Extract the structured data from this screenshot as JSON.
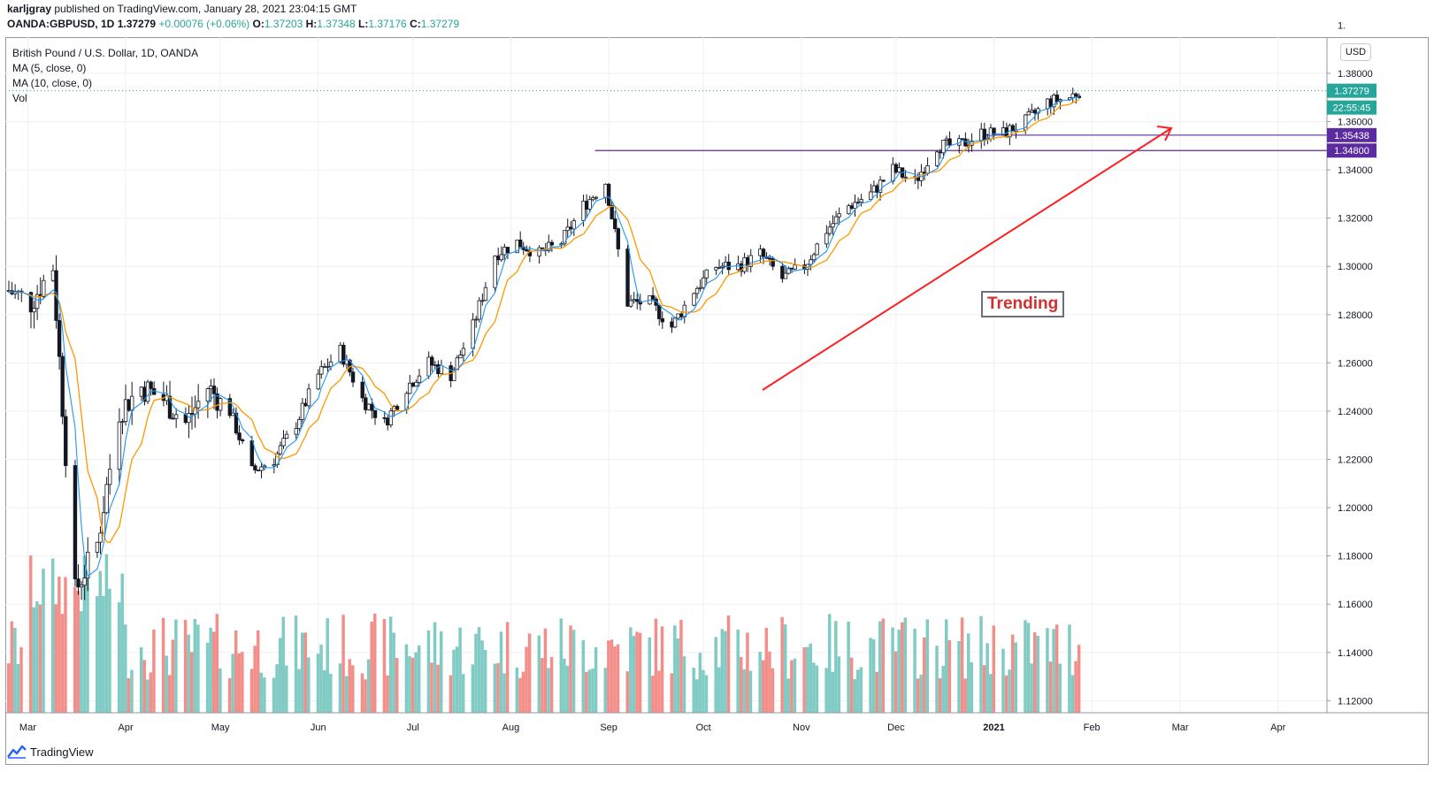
{
  "header": {
    "publisher": "karljgray",
    "published_text": " published on TradingView.com, January 28, 2021 23:04:15 GMT",
    "symbol": "OANDA:GBPUSD, 1D",
    "last": "1.37279",
    "change": "+0.00076 (+0.06%)",
    "o_label": "O:",
    "o": "1.37203",
    "h_label": "H:",
    "h": "1.37348",
    "l_label": "L:",
    "l": "1.37176",
    "c_label": "C:",
    "c": "1.37279"
  },
  "legend": {
    "title": "British Pound / U.S. Dollar, 1D, OANDA",
    "ma5": "MA (5, close, 0)",
    "ma10": "MA (10, close, 0)",
    "vol": "Vol"
  },
  "currency_button": "USD",
  "annotation": {
    "text": "Trending",
    "color": "#d32f2f"
  },
  "footer": {
    "brand": "TradingView"
  },
  "price_tags": {
    "last": "1.37279",
    "countdown": "22:55:45",
    "level1": "1.35438",
    "level2": "1.34800"
  },
  "colors": {
    "up": "#26a69a",
    "down": "#ef5350",
    "candle": "#131722",
    "ma5": "#2196f3",
    "ma10": "#ff9800",
    "vol_up": "#80cbc4",
    "vol_down": "#f28f8a",
    "level_line": "#5b2c9f",
    "trend_arrow": "#ff1f1f"
  },
  "chart_data": {
    "type": "candlestick",
    "symbol": "OANDA:GBPUSD",
    "interval": "1D",
    "ylim": [
      1.115,
      1.395
    ],
    "y_ticks": [
      "1.38000",
      "1.36000",
      "1.34000",
      "1.32000",
      "1.30000",
      "1.28000",
      "1.26000",
      "1.24000",
      "1.22000",
      "1.20000",
      "1.18000",
      "1.16000",
      "1.14000",
      "1.12000"
    ],
    "x_ticks": [
      "Mar",
      "Apr",
      "May",
      "Jun",
      "Jul",
      "Aug",
      "Sep",
      "Oct",
      "Nov",
      "Dec",
      "2021",
      "Feb",
      "Mar",
      "Apr"
    ],
    "close_series": {
      "dates": [
        "2020-02-24",
        "2020-03-02",
        "2020-03-09",
        "2020-03-16",
        "2020-03-23",
        "2020-03-30",
        "2020-04-06",
        "2020-04-13",
        "2020-04-20",
        "2020-04-27",
        "2020-05-04",
        "2020-05-11",
        "2020-05-18",
        "2020-05-25",
        "2020-06-01",
        "2020-06-08",
        "2020-06-15",
        "2020-06-22",
        "2020-06-29",
        "2020-07-06",
        "2020-07-13",
        "2020-07-20",
        "2020-07-27",
        "2020-08-03",
        "2020-08-10",
        "2020-08-17",
        "2020-08-24",
        "2020-08-31",
        "2020-09-07",
        "2020-09-14",
        "2020-09-21",
        "2020-09-28",
        "2020-10-05",
        "2020-10-12",
        "2020-10-19",
        "2020-10-26",
        "2020-11-02",
        "2020-11-09",
        "2020-11-16",
        "2020-11-23",
        "2020-11-30",
        "2020-12-07",
        "2020-12-14",
        "2020-12-21",
        "2020-12-28",
        "2021-01-04",
        "2021-01-11",
        "2021-01-18",
        "2021-01-25",
        "2021-01-28"
      ],
      "close": [
        1.29,
        1.285,
        1.3,
        1.165,
        1.185,
        1.24,
        1.25,
        1.245,
        1.235,
        1.25,
        1.24,
        1.215,
        1.22,
        1.235,
        1.255,
        1.265,
        1.245,
        1.235,
        1.25,
        1.26,
        1.255,
        1.275,
        1.305,
        1.31,
        1.305,
        1.31,
        1.325,
        1.335,
        1.285,
        1.285,
        1.275,
        1.29,
        1.3,
        1.3,
        1.305,
        1.295,
        1.3,
        1.315,
        1.325,
        1.33,
        1.34,
        1.335,
        1.35,
        1.35,
        1.355,
        1.355,
        1.36,
        1.368,
        1.37,
        1.37279
      ]
    },
    "horizontal_levels": [
      1.35438,
      1.348
    ],
    "last_price": 1.37279,
    "annotation": "Trending"
  }
}
